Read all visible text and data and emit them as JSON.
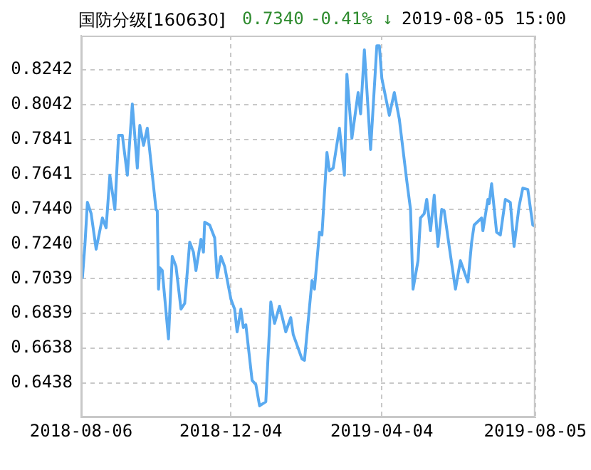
{
  "chart_data": {
    "type": "line",
    "title": "国防分级[160630]",
    "annotations": [
      "0.7340",
      "-0.41% ↓",
      "2019-08-05 15:00"
    ],
    "x": [
      "2018-08-06",
      "2018-08-07",
      "2018-08-09",
      "2018-08-11",
      "2018-08-14",
      "2018-08-18",
      "2018-08-23",
      "2018-08-26",
      "2018-08-29",
      "2018-09-02",
      "2018-09-05",
      "2018-09-08",
      "2018-09-12",
      "2018-09-16",
      "2018-09-20",
      "2018-09-22",
      "2018-09-25",
      "2018-09-28",
      "2018-10-05",
      "2018-10-06",
      "2018-10-07",
      "2018-10-08",
      "2018-10-10",
      "2018-10-15",
      "2018-10-18",
      "2018-10-21",
      "2018-10-25",
      "2018-10-28",
      "2018-11-01",
      "2018-11-04",
      "2018-11-06",
      "2018-11-10",
      "2018-11-12",
      "2018-11-13",
      "2018-11-17",
      "2018-11-21",
      "2018-11-23",
      "2018-11-26",
      "2018-11-29",
      "2018-12-04",
      "2018-12-07",
      "2018-12-09",
      "2018-12-12",
      "2018-12-14",
      "2018-12-16",
      "2018-12-21",
      "2018-12-24",
      "2018-12-27",
      "2019-01-01",
      "2019-01-05",
      "2019-01-08",
      "2019-01-12",
      "2019-01-14",
      "2019-01-17",
      "2019-01-21",
      "2019-01-23",
      "2019-01-30",
      "2019-02-01",
      "2019-02-07",
      "2019-02-09",
      "2019-02-13",
      "2019-02-15",
      "2019-02-19",
      "2019-02-21",
      "2019-02-24",
      "2019-03-01",
      "2019-03-05",
      "2019-03-07",
      "2019-03-11",
      "2019-03-16",
      "2019-03-18",
      "2019-03-21",
      "2019-03-26",
      "2019-03-31",
      "2019-04-02",
      "2019-04-04",
      "2019-04-10",
      "2019-04-14",
      "2019-04-18",
      "2019-04-20",
      "2019-04-24",
      "2019-04-27",
      "2019-04-29",
      "2019-05-03",
      "2019-05-05",
      "2019-05-08",
      "2019-05-10",
      "2019-05-13",
      "2019-05-16",
      "2019-05-19",
      "2019-05-22",
      "2019-05-24",
      "2019-05-28",
      "2019-06-02",
      "2019-06-06",
      "2019-06-12",
      "2019-06-15",
      "2019-06-17",
      "2019-06-23",
      "2019-06-24",
      "2019-06-28",
      "2019-06-29",
      "2019-07-01",
      "2019-07-05",
      "2019-07-08",
      "2019-07-12",
      "2019-07-16",
      "2019-07-18",
      "2019-07-19",
      "2019-07-23",
      "2019-07-26",
      "2019-07-30",
      "2019-08-03",
      "2019-08-05"
    ],
    "series": [
      {
        "color": "#5aaaf0",
        "values": [
          0.717,
          0.7045,
          0.7233,
          0.7479,
          0.7414,
          0.7209,
          0.7389,
          0.7332,
          0.7635,
          0.7438,
          0.7865,
          0.7865,
          0.7635,
          0.8045,
          0.7676,
          0.7922,
          0.7807,
          0.7906,
          0.7438,
          0.743,
          0.6979,
          0.7102,
          0.7086,
          0.6692,
          0.7168,
          0.711,
          0.6864,
          0.6897,
          0.725,
          0.7192,
          0.7086,
          0.7266,
          0.7192,
          0.7365,
          0.7348,
          0.7274,
          0.7045,
          0.7168,
          0.711,
          0.6922,
          0.6864,
          0.6733,
          0.6864,
          0.6758,
          0.6774,
          0.6454,
          0.643,
          0.6307,
          0.6331,
          0.6905,
          0.6782,
          0.6881,
          0.6823,
          0.6733,
          0.6815,
          0.6717,
          0.6577,
          0.6569,
          0.7028,
          0.6979,
          0.7307,
          0.7291,
          0.7766,
          0.766,
          0.7676,
          0.7906,
          0.7635,
          0.8217,
          0.7848,
          0.8111,
          0.7988,
          0.8357,
          0.7783,
          0.8381,
          0.8381,
          0.8193,
          0.798,
          0.8111,
          0.7959,
          0.784,
          0.7602,
          0.7438,
          0.6979,
          0.7143,
          0.7389,
          0.7414,
          0.7496,
          0.7315,
          0.752,
          0.7225,
          0.7438,
          0.743,
          0.7225,
          0.6979,
          0.7143,
          0.702,
          0.725,
          0.7348,
          0.7389,
          0.7315,
          0.7496,
          0.7471,
          0.7586,
          0.7307,
          0.7291,
          0.7496,
          0.7479,
          0.7307,
          0.7225,
          0.7455,
          0.7561,
          0.7553,
          0.7348,
          0.734
        ]
      }
    ],
    "xlim": [
      "2018-08-06",
      "2019-08-05"
    ],
    "xticks": [
      "2018-08-06",
      "2018-12-04",
      "2019-04-04",
      "2019-08-05"
    ],
    "ylim": [
      0.6241,
      0.8439
    ],
    "yticks": [
      0.6438,
      0.6638,
      0.6839,
      0.7039,
      {
        "value": 0.724,
        "label": "0.7240"
      },
      {
        "value": 0.744,
        "label": "0.7440"
      },
      0.7641,
      0.7841,
      0.8042,
      0.8242
    ],
    "grid": true,
    "marker": "none",
    "line_style": "solid"
  }
}
